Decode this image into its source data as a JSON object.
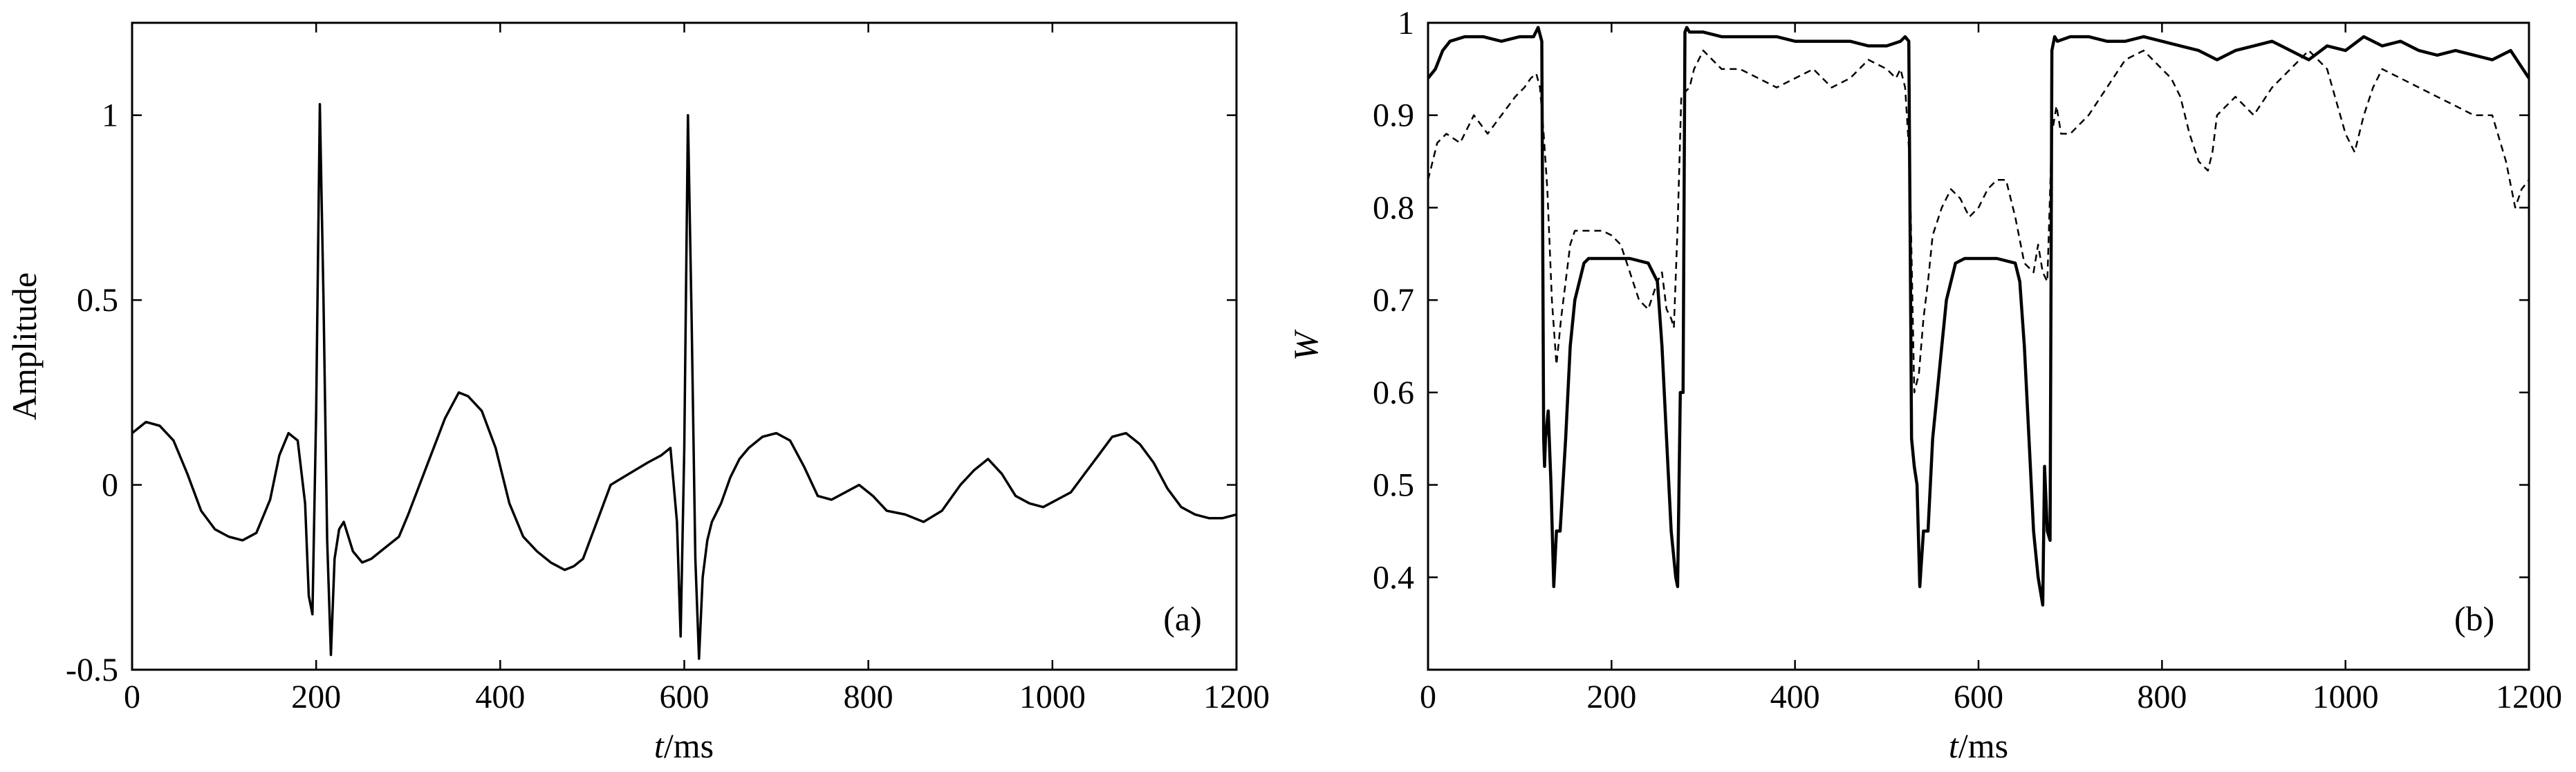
{
  "chart_data": [
    {
      "type": "line",
      "panel_label": "(a)",
      "xlabel_italic": "t",
      "xlabel_unit": "/ms",
      "ylabel": "Amplitude",
      "xlim": [
        0,
        1200
      ],
      "ylim": [
        -0.5,
        1.25
      ],
      "x_ticks": [
        0,
        200,
        400,
        600,
        800,
        1000,
        1200
      ],
      "x_tick_labels": [
        "0",
        "200",
        "400",
        "600",
        "800",
        "1000",
        "1200"
      ],
      "y_ticks": [
        -0.5,
        0,
        0.5,
        1
      ],
      "y_tick_labels": [
        "-0.5",
        "0",
        "0.5",
        "1"
      ],
      "grid": false,
      "legend": "none",
      "series": [
        {
          "style": "solid",
          "x": [
            0,
            15,
            30,
            45,
            60,
            75,
            90,
            105,
            120,
            135,
            150,
            160,
            170,
            180,
            188,
            192,
            196,
            200,
            204,
            208,
            212,
            216,
            220,
            225,
            230,
            240,
            250,
            260,
            270,
            280,
            290,
            300,
            320,
            340,
            355,
            365,
            380,
            395,
            410,
            425,
            440,
            455,
            470,
            480,
            490,
            505,
            520,
            540,
            560,
            575,
            585,
            592,
            596,
            600,
            604,
            608,
            612,
            616,
            620,
            625,
            630,
            640,
            650,
            660,
            670,
            685,
            700,
            715,
            730,
            745,
            760,
            775,
            790,
            805,
            820,
            840,
            860,
            880,
            900,
            915,
            930,
            945,
            960,
            975,
            990,
            1005,
            1020,
            1035,
            1050,
            1065,
            1080,
            1095,
            1110,
            1125,
            1140,
            1155,
            1170,
            1185,
            1200
          ],
          "y": [
            0.14,
            0.17,
            0.16,
            0.12,
            0.03,
            -0.07,
            -0.12,
            -0.14,
            -0.15,
            -0.13,
            -0.04,
            0.08,
            0.14,
            0.12,
            -0.05,
            -0.3,
            -0.35,
            0.2,
            1.03,
            0.5,
            -0.15,
            -0.46,
            -0.2,
            -0.12,
            -0.1,
            -0.18,
            -0.21,
            -0.2,
            -0.18,
            -0.16,
            -0.14,
            -0.08,
            0.05,
            0.18,
            0.25,
            0.24,
            0.2,
            0.1,
            -0.05,
            -0.14,
            -0.18,
            -0.21,
            -0.23,
            -0.22,
            -0.2,
            -0.1,
            0.0,
            0.03,
            0.06,
            0.08,
            0.1,
            -0.1,
            -0.41,
            0.1,
            1.0,
            0.45,
            -0.2,
            -0.47,
            -0.25,
            -0.15,
            -0.1,
            -0.05,
            0.02,
            0.07,
            0.1,
            0.13,
            0.14,
            0.12,
            0.05,
            -0.03,
            -0.04,
            -0.02,
            0.0,
            -0.03,
            -0.07,
            -0.08,
            -0.1,
            -0.07,
            0.0,
            0.04,
            0.07,
            0.03,
            -0.03,
            -0.05,
            -0.06,
            -0.04,
            -0.02,
            0.03,
            0.08,
            0.13,
            0.14,
            0.11,
            0.06,
            -0.01,
            -0.06,
            -0.08,
            -0.09,
            -0.09,
            -0.08
          ]
        }
      ]
    },
    {
      "type": "line",
      "panel_label": "(b)",
      "xlabel_italic": "t",
      "xlabel_unit": "/ms",
      "ylabel": "W",
      "xlim": [
        0,
        1200
      ],
      "ylim": [
        0.3,
        1.0
      ],
      "x_ticks": [
        0,
        200,
        400,
        600,
        800,
        1000,
        1200
      ],
      "x_tick_labels": [
        "0",
        "200",
        "400",
        "600",
        "800",
        "1000",
        "1200"
      ],
      "y_ticks": [
        0.4,
        0.5,
        0.6,
        0.7,
        0.8,
        0.9,
        1
      ],
      "y_tick_labels": [
        "0.4",
        "0.5",
        "0.6",
        "0.7",
        "0.8",
        "0.9",
        "1"
      ],
      "grid": false,
      "legend": "none",
      "series": [
        {
          "style": "solid",
          "x": [
            0,
            8,
            16,
            24,
            40,
            60,
            80,
            100,
            115,
            120,
            124,
            126,
            127,
            128,
            131,
            134,
            137,
            140,
            144,
            150,
            155,
            160,
            165,
            170,
            175,
            185,
            200,
            220,
            240,
            250,
            255,
            260,
            265,
            270,
            272,
            275,
            278,
            280,
            282,
            285,
            300,
            320,
            340,
            360,
            380,
            400,
            420,
            440,
            460,
            480,
            500,
            515,
            520,
            524,
            527,
            530,
            533,
            536,
            540,
            545,
            550,
            560,
            565,
            570,
            575,
            585,
            600,
            620,
            640,
            645,
            650,
            655,
            660,
            665,
            670,
            672,
            675,
            678,
            680,
            683,
            686,
            700,
            720,
            740,
            760,
            780,
            800,
            820,
            840,
            860,
            880,
            900,
            920,
            940,
            960,
            980,
            1000,
            1020,
            1040,
            1060,
            1080,
            1100,
            1120,
            1140,
            1160,
            1180,
            1200
          ],
          "y": [
            0.94,
            0.95,
            0.97,
            0.98,
            0.985,
            0.985,
            0.98,
            0.985,
            0.985,
            0.995,
            0.98,
            0.55,
            0.52,
            0.55,
            0.58,
            0.5,
            0.39,
            0.45,
            0.45,
            0.55,
            0.65,
            0.7,
            0.72,
            0.74,
            0.745,
            0.745,
            0.745,
            0.745,
            0.74,
            0.72,
            0.65,
            0.55,
            0.45,
            0.4,
            0.39,
            0.6,
            0.6,
            0.99,
            0.995,
            0.99,
            0.99,
            0.985,
            0.985,
            0.985,
            0.985,
            0.98,
            0.98,
            0.98,
            0.98,
            0.975,
            0.975,
            0.98,
            0.985,
            0.98,
            0.55,
            0.52,
            0.5,
            0.39,
            0.45,
            0.45,
            0.55,
            0.65,
            0.7,
            0.72,
            0.74,
            0.745,
            0.745,
            0.745,
            0.74,
            0.72,
            0.65,
            0.55,
            0.45,
            0.4,
            0.37,
            0.52,
            0.45,
            0.44,
            0.97,
            0.985,
            0.98,
            0.985,
            0.985,
            0.98,
            0.98,
            0.985,
            0.98,
            0.975,
            0.97,
            0.96,
            0.97,
            0.975,
            0.98,
            0.97,
            0.96,
            0.975,
            0.97,
            0.985,
            0.975,
            0.98,
            0.97,
            0.965,
            0.97,
            0.965,
            0.96,
            0.97,
            0.94
          ]
        },
        {
          "style": "dashed",
          "x": [
            0,
            10,
            20,
            35,
            50,
            65,
            80,
            95,
            105,
            112,
            118,
            122,
            126,
            130,
            135,
            140,
            145,
            150,
            155,
            160,
            170,
            180,
            190,
            200,
            210,
            220,
            230,
            240,
            250,
            255,
            260,
            265,
            268,
            272,
            276,
            280,
            285,
            290,
            300,
            320,
            340,
            360,
            380,
            400,
            420,
            440,
            460,
            480,
            500,
            510,
            515,
            520,
            525,
            530,
            535,
            540,
            545,
            550,
            560,
            570,
            580,
            590,
            600,
            610,
            620,
            630,
            640,
            650,
            660,
            665,
            670,
            675,
            680,
            685,
            690,
            700,
            720,
            740,
            760,
            780,
            800,
            810,
            820,
            830,
            840,
            850,
            855,
            860,
            870,
            880,
            900,
            920,
            940,
            960,
            980,
            1000,
            1010,
            1020,
            1030,
            1040,
            1060,
            1080,
            1100,
            1120,
            1140,
            1160,
            1175,
            1185,
            1192,
            1200
          ],
          "y": [
            0.83,
            0.87,
            0.88,
            0.87,
            0.9,
            0.88,
            0.9,
            0.92,
            0.93,
            0.94,
            0.945,
            0.93,
            0.88,
            0.82,
            0.7,
            0.63,
            0.68,
            0.72,
            0.76,
            0.775,
            0.775,
            0.775,
            0.775,
            0.77,
            0.76,
            0.73,
            0.7,
            0.69,
            0.72,
            0.73,
            0.69,
            0.68,
            0.67,
            0.78,
            0.92,
            0.925,
            0.93,
            0.95,
            0.97,
            0.95,
            0.95,
            0.94,
            0.93,
            0.94,
            0.95,
            0.93,
            0.94,
            0.96,
            0.95,
            0.94,
            0.95,
            0.93,
            0.85,
            0.6,
            0.62,
            0.68,
            0.72,
            0.77,
            0.8,
            0.82,
            0.81,
            0.79,
            0.8,
            0.82,
            0.83,
            0.83,
            0.79,
            0.74,
            0.73,
            0.76,
            0.73,
            0.72,
            0.88,
            0.91,
            0.88,
            0.88,
            0.9,
            0.93,
            0.96,
            0.97,
            0.95,
            0.94,
            0.92,
            0.88,
            0.85,
            0.84,
            0.86,
            0.9,
            0.91,
            0.92,
            0.9,
            0.93,
            0.95,
            0.97,
            0.95,
            0.88,
            0.86,
            0.9,
            0.93,
            0.95,
            0.94,
            0.93,
            0.92,
            0.91,
            0.9,
            0.9,
            0.85,
            0.8,
            0.82,
            0.83
          ]
        }
      ]
    }
  ]
}
